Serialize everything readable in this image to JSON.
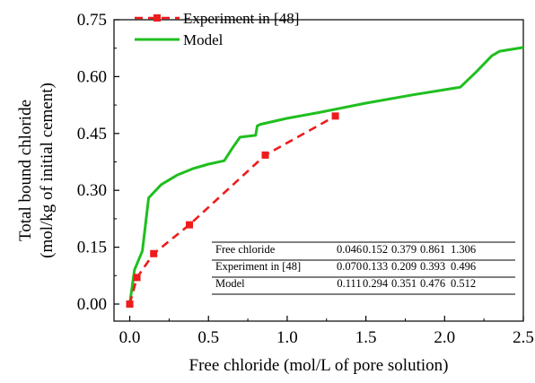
{
  "chart_data": {
    "type": "line",
    "xlabel": "Free chloride (mol/L of pore solution)",
    "ylabel_line1": "Total bound chloride",
    "ylabel_line2": "(mol/kg of initial cement)",
    "xlim": [
      -0.1,
      2.5
    ],
    "ylim": [
      -0.045,
      0.75
    ],
    "x_ticks": [
      0.0,
      0.5,
      1.0,
      1.5,
      2.0,
      2.5
    ],
    "x_tick_labels": [
      "0.0",
      "0.5",
      "1.0",
      "1.5",
      "2.0",
      "2.5"
    ],
    "y_ticks": [
      0.0,
      0.15,
      0.3,
      0.45,
      0.6,
      0.75
    ],
    "y_tick_labels": [
      "0.00",
      "0.15",
      "0.30",
      "0.45",
      "0.60",
      "0.75"
    ],
    "legend_position": "top-left",
    "series": [
      {
        "name": "Experiment in [48]",
        "style": "dashed-square",
        "color": "#ee1c1c",
        "x": [
          0.0,
          0.046,
          0.152,
          0.379,
          0.861,
          1.306
        ],
        "y": [
          0.0,
          0.07,
          0.133,
          0.209,
          0.393,
          0.496
        ]
      },
      {
        "name": "Model",
        "style": "solid",
        "color": "#1fbf1f",
        "x": [
          0.0,
          0.03,
          0.08,
          0.12,
          0.2,
          0.3,
          0.4,
          0.5,
          0.6,
          0.65,
          0.7,
          0.73,
          0.8,
          0.81,
          0.83,
          1.0,
          1.2,
          1.5,
          1.8,
          2.1,
          2.2,
          2.3,
          2.35,
          2.5
        ],
        "y": [
          0.0,
          0.09,
          0.14,
          0.28,
          0.315,
          0.34,
          0.357,
          0.369,
          0.378,
          0.41,
          0.44,
          0.442,
          0.445,
          0.47,
          0.474,
          0.49,
          0.505,
          0.53,
          0.552,
          0.572,
          0.612,
          0.655,
          0.667,
          0.677
        ]
      }
    ]
  },
  "table": {
    "rows": [
      {
        "label": "Free chloride",
        "values": [
          "0.046",
          "0.152",
          "0.379",
          "0.861",
          "1.306"
        ]
      },
      {
        "label": "Experiment in [48]",
        "values": [
          "0.070",
          "0.133",
          "0.209",
          "0.393",
          "0.496"
        ]
      },
      {
        "label": "Model",
        "values": [
          "0.111",
          "0.294",
          "0.351",
          "0.476",
          "0.512"
        ]
      }
    ]
  }
}
